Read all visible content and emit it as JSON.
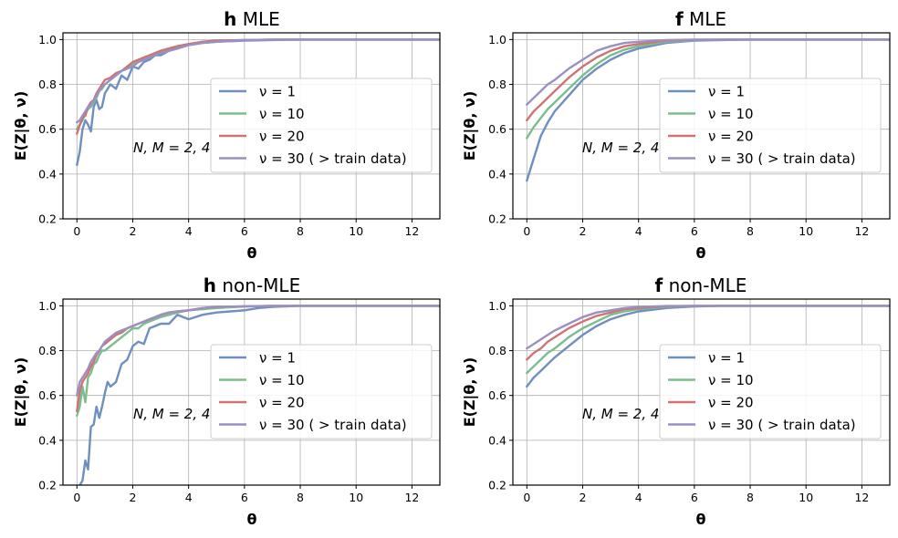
{
  "chart_data": [
    {
      "type": "line",
      "title_bold": "h",
      "title_rest": " MLE",
      "xlabel": "θ",
      "ylabel": "E(Z|θ, ν)",
      "xlim": [
        -0.5,
        13
      ],
      "ylim": [
        0.2,
        1.03
      ],
      "xticks": [
        0,
        2,
        4,
        6,
        8,
        10,
        12
      ],
      "yticks": [
        0.2,
        0.4,
        0.6,
        0.8,
        1.0
      ],
      "grid": true,
      "legend_position": "center-right",
      "annotation": "N, M = 2, 4",
      "series": [
        {
          "name": "ν = 1",
          "color": "#6e8fc0",
          "x": [
            0,
            0.1,
            0.2,
            0.3,
            0.4,
            0.5,
            0.6,
            0.7,
            0.8,
            0.9,
            1.0,
            1.2,
            1.4,
            1.6,
            1.8,
            2.0,
            2.2,
            2.4,
            2.6,
            2.8,
            3.0,
            3.3,
            3.6,
            4.0,
            4.5,
            5.0,
            6.0,
            7.0,
            8.0,
            10.0,
            13.0
          ],
          "y": [
            0.44,
            0.5,
            0.6,
            0.64,
            0.62,
            0.59,
            0.7,
            0.73,
            0.69,
            0.7,
            0.76,
            0.8,
            0.78,
            0.84,
            0.82,
            0.88,
            0.87,
            0.9,
            0.91,
            0.93,
            0.93,
            0.95,
            0.96,
            0.975,
            0.985,
            0.99,
            0.995,
            0.998,
            1.0,
            1.0,
            1.0
          ]
        },
        {
          "name": "ν = 10",
          "color": "#7bbd8c",
          "x": [
            0,
            0.1,
            0.2,
            0.3,
            0.4,
            0.5,
            0.6,
            0.7,
            0.8,
            0.9,
            1.0,
            1.2,
            1.4,
            1.6,
            1.8,
            2.0,
            2.2,
            2.4,
            2.6,
            2.8,
            3.0,
            3.3,
            3.6,
            4.0,
            4.5,
            5.0,
            6.0,
            7.0,
            8.0,
            10.0,
            13.0
          ],
          "y": [
            0.6,
            0.62,
            0.64,
            0.67,
            0.69,
            0.7,
            0.72,
            0.74,
            0.77,
            0.78,
            0.8,
            0.82,
            0.84,
            0.86,
            0.87,
            0.89,
            0.9,
            0.91,
            0.92,
            0.94,
            0.95,
            0.96,
            0.97,
            0.98,
            0.99,
            0.995,
            0.998,
            1.0,
            1.0,
            1.0,
            1.0
          ]
        },
        {
          "name": "ν = 20",
          "color": "#cd7474",
          "x": [
            0,
            0.1,
            0.2,
            0.3,
            0.4,
            0.5,
            0.6,
            0.7,
            0.8,
            0.9,
            1.0,
            1.2,
            1.4,
            1.6,
            1.8,
            2.0,
            2.2,
            2.4,
            2.6,
            2.8,
            3.0,
            3.3,
            3.6,
            4.0,
            4.5,
            5.0,
            6.0,
            7.0,
            8.0,
            10.0,
            13.0
          ],
          "y": [
            0.58,
            0.62,
            0.65,
            0.66,
            0.7,
            0.72,
            0.73,
            0.76,
            0.78,
            0.8,
            0.82,
            0.83,
            0.85,
            0.86,
            0.88,
            0.9,
            0.91,
            0.92,
            0.93,
            0.94,
            0.95,
            0.96,
            0.97,
            0.98,
            0.99,
            0.995,
            0.998,
            1.0,
            1.0,
            1.0,
            1.0
          ]
        },
        {
          "name": "ν = 30  ( >  train data)",
          "color": "#9b8fc3",
          "x": [
            0,
            0.1,
            0.2,
            0.3,
            0.4,
            0.5,
            0.6,
            0.7,
            0.8,
            0.9,
            1.0,
            1.2,
            1.4,
            1.6,
            1.8,
            2.0,
            2.2,
            2.4,
            2.6,
            2.8,
            3.0,
            3.3,
            3.6,
            4.0,
            4.5,
            5.0,
            6.0,
            7.0,
            8.0,
            10.0,
            13.0
          ],
          "y": [
            0.63,
            0.64,
            0.66,
            0.68,
            0.7,
            0.71,
            0.73,
            0.75,
            0.77,
            0.79,
            0.8,
            0.82,
            0.84,
            0.86,
            0.87,
            0.88,
            0.9,
            0.91,
            0.92,
            0.93,
            0.94,
            0.95,
            0.96,
            0.975,
            0.985,
            0.99,
            0.997,
            1.0,
            1.0,
            1.0,
            1.0
          ]
        }
      ]
    },
    {
      "type": "line",
      "title_bold": "f",
      "title_rest": " MLE",
      "xlabel": "θ",
      "ylabel": "E(Z|θ, ν)",
      "xlim": [
        -0.5,
        13
      ],
      "ylim": [
        0.2,
        1.03
      ],
      "xticks": [
        0,
        2,
        4,
        6,
        8,
        10,
        12
      ],
      "yticks": [
        0.2,
        0.4,
        0.6,
        0.8,
        1.0
      ],
      "grid": true,
      "legend_position": "center-right",
      "annotation": "N, M = 2, 4",
      "series": [
        {
          "name": "ν = 1",
          "color": "#6e8fc0",
          "x": [
            0,
            0.25,
            0.5,
            0.75,
            1.0,
            1.5,
            2.0,
            2.5,
            3.0,
            3.5,
            4.0,
            5.0,
            6.0,
            7.0,
            8.0,
            10.0,
            13.0
          ],
          "y": [
            0.37,
            0.47,
            0.57,
            0.63,
            0.68,
            0.75,
            0.82,
            0.87,
            0.91,
            0.94,
            0.96,
            0.985,
            0.995,
            0.998,
            1.0,
            1.0,
            1.0
          ]
        },
        {
          "name": "ν = 10",
          "color": "#7bbd8c",
          "x": [
            0,
            0.25,
            0.5,
            0.75,
            1.0,
            1.5,
            2.0,
            2.5,
            3.0,
            3.5,
            4.0,
            5.0,
            6.0,
            7.0,
            8.0,
            10.0,
            13.0
          ],
          "y": [
            0.56,
            0.61,
            0.65,
            0.69,
            0.72,
            0.78,
            0.84,
            0.89,
            0.93,
            0.955,
            0.97,
            0.99,
            0.997,
            1.0,
            1.0,
            1.0,
            1.0
          ]
        },
        {
          "name": "ν = 20",
          "color": "#cd7474",
          "x": [
            0,
            0.25,
            0.5,
            0.75,
            1.0,
            1.5,
            2.0,
            2.5,
            3.0,
            3.5,
            4.0,
            5.0,
            6.0,
            7.0,
            8.0,
            10.0,
            13.0
          ],
          "y": [
            0.64,
            0.68,
            0.71,
            0.74,
            0.77,
            0.83,
            0.88,
            0.92,
            0.95,
            0.97,
            0.98,
            0.995,
            0.999,
            1.0,
            1.0,
            1.0,
            1.0
          ]
        },
        {
          "name": "ν = 30  ( >  train data)",
          "color": "#9b8fc3",
          "x": [
            0,
            0.25,
            0.5,
            0.75,
            1.0,
            1.5,
            2.0,
            2.5,
            3.0,
            3.5,
            4.0,
            5.0,
            6.0,
            7.0,
            8.0,
            10.0,
            13.0
          ],
          "y": [
            0.71,
            0.74,
            0.77,
            0.8,
            0.82,
            0.87,
            0.91,
            0.95,
            0.97,
            0.985,
            0.99,
            0.998,
            1.0,
            1.0,
            1.0,
            1.0,
            1.0
          ]
        }
      ]
    },
    {
      "type": "line",
      "title_bold": "h",
      "title_rest": " non-MLE",
      "xlabel": "θ",
      "ylabel": "E(Z|θ, ν)",
      "xlim": [
        -0.5,
        13
      ],
      "ylim": [
        0.2,
        1.03
      ],
      "xticks": [
        0,
        2,
        4,
        6,
        8,
        10,
        12
      ],
      "yticks": [
        0.2,
        0.4,
        0.6,
        0.8,
        1.0
      ],
      "grid": true,
      "legend_position": "center-right",
      "annotation": "N, M = 2, 4",
      "series": [
        {
          "name": "ν = 1",
          "color": "#6e8fc0",
          "x": [
            0.1,
            0.2,
            0.3,
            0.4,
            0.5,
            0.6,
            0.7,
            0.8,
            0.9,
            1.0,
            1.1,
            1.2,
            1.4,
            1.6,
            1.8,
            2.0,
            2.2,
            2.4,
            2.6,
            2.8,
            3.0,
            3.3,
            3.6,
            4.0,
            4.5,
            5.0,
            5.5,
            6.0,
            6.5,
            7.0,
            8.0,
            10.0,
            13.0
          ],
          "y": [
            0.2,
            0.22,
            0.31,
            0.27,
            0.46,
            0.47,
            0.55,
            0.5,
            0.55,
            0.61,
            0.66,
            0.64,
            0.66,
            0.74,
            0.76,
            0.82,
            0.84,
            0.83,
            0.9,
            0.91,
            0.92,
            0.92,
            0.96,
            0.94,
            0.96,
            0.97,
            0.975,
            0.98,
            0.99,
            0.995,
            1.0,
            1.0,
            1.0
          ]
        },
        {
          "name": "ν = 10",
          "color": "#7bbd8c",
          "x": [
            0,
            0.1,
            0.2,
            0.3,
            0.4,
            0.5,
            0.6,
            0.7,
            0.8,
            0.9,
            1.0,
            1.2,
            1.4,
            1.6,
            1.8,
            2.0,
            2.2,
            2.4,
            2.6,
            2.8,
            3.0,
            3.3,
            3.6,
            4.0,
            4.5,
            5.0,
            6.0,
            7.0,
            8.0,
            10.0,
            13.0
          ],
          "y": [
            0.51,
            0.55,
            0.64,
            0.57,
            0.68,
            0.7,
            0.74,
            0.75,
            0.78,
            0.8,
            0.8,
            0.82,
            0.84,
            0.86,
            0.88,
            0.9,
            0.9,
            0.92,
            0.93,
            0.94,
            0.95,
            0.96,
            0.97,
            0.98,
            0.985,
            0.99,
            0.997,
            1.0,
            1.0,
            1.0,
            1.0
          ]
        },
        {
          "name": "ν = 20",
          "color": "#cd7474",
          "x": [
            0,
            0.1,
            0.2,
            0.3,
            0.4,
            0.5,
            0.6,
            0.7,
            0.8,
            0.9,
            1.0,
            1.2,
            1.4,
            1.6,
            1.8,
            2.0,
            2.2,
            2.4,
            2.6,
            2.8,
            3.0,
            3.3,
            3.6,
            4.0,
            4.5,
            5.0,
            6.0,
            7.0,
            8.0,
            10.0,
            13.0
          ],
          "y": [
            0.53,
            0.62,
            0.66,
            0.68,
            0.7,
            0.73,
            0.75,
            0.78,
            0.8,
            0.82,
            0.83,
            0.85,
            0.87,
            0.88,
            0.9,
            0.91,
            0.92,
            0.93,
            0.94,
            0.95,
            0.96,
            0.97,
            0.975,
            0.98,
            0.99,
            0.995,
            0.998,
            1.0,
            1.0,
            1.0,
            1.0
          ]
        },
        {
          "name": "ν = 30  ( >  train data)",
          "color": "#9b8fc3",
          "x": [
            0,
            0.1,
            0.2,
            0.3,
            0.4,
            0.5,
            0.6,
            0.7,
            0.8,
            0.9,
            1.0,
            1.2,
            1.4,
            1.6,
            1.8,
            2.0,
            2.2,
            2.4,
            2.6,
            2.8,
            3.0,
            3.3,
            3.6,
            4.0,
            4.5,
            5.0,
            6.0,
            7.0,
            8.0,
            10.0,
            13.0
          ],
          "y": [
            0.6,
            0.66,
            0.68,
            0.7,
            0.72,
            0.75,
            0.77,
            0.79,
            0.8,
            0.82,
            0.84,
            0.86,
            0.88,
            0.89,
            0.9,
            0.91,
            0.92,
            0.93,
            0.94,
            0.95,
            0.96,
            0.97,
            0.975,
            0.98,
            0.99,
            0.995,
            0.998,
            1.0,
            1.0,
            1.0,
            1.0
          ]
        }
      ]
    },
    {
      "type": "line",
      "title_bold": "f",
      "title_rest": " non-MLE",
      "xlabel": "θ",
      "ylabel": "E(Z|θ, ν)",
      "xlim": [
        -0.5,
        13
      ],
      "ylim": [
        0.2,
        1.03
      ],
      "xticks": [
        0,
        2,
        4,
        6,
        8,
        10,
        12
      ],
      "yticks": [
        0.2,
        0.4,
        0.6,
        0.8,
        1.0
      ],
      "grid": true,
      "legend_position": "center-right",
      "annotation": "N, M = 2, 4",
      "series": [
        {
          "name": "ν = 1",
          "color": "#6e8fc0",
          "x": [
            0,
            0.25,
            0.5,
            0.75,
            1.0,
            1.5,
            2.0,
            2.5,
            3.0,
            3.5,
            4.0,
            5.0,
            6.0,
            7.0,
            8.0,
            10.0,
            13.0
          ],
          "y": [
            0.64,
            0.68,
            0.71,
            0.74,
            0.77,
            0.82,
            0.87,
            0.91,
            0.94,
            0.96,
            0.975,
            0.99,
            0.997,
            1.0,
            1.0,
            1.0,
            1.0
          ]
        },
        {
          "name": "ν = 10",
          "color": "#7bbd8c",
          "x": [
            0,
            0.25,
            0.5,
            0.75,
            1.0,
            1.5,
            2.0,
            2.5,
            3.0,
            3.5,
            4.0,
            5.0,
            6.0,
            7.0,
            8.0,
            10.0,
            13.0
          ],
          "y": [
            0.7,
            0.73,
            0.76,
            0.79,
            0.81,
            0.86,
            0.9,
            0.93,
            0.96,
            0.975,
            0.985,
            0.995,
            0.999,
            1.0,
            1.0,
            1.0,
            1.0
          ]
        },
        {
          "name": "ν = 20",
          "color": "#cd7474",
          "x": [
            0,
            0.25,
            0.5,
            0.75,
            1.0,
            1.5,
            2.0,
            2.5,
            3.0,
            3.5,
            4.0,
            5.0,
            6.0,
            7.0,
            8.0,
            10.0,
            13.0
          ],
          "y": [
            0.76,
            0.79,
            0.81,
            0.84,
            0.86,
            0.9,
            0.93,
            0.955,
            0.97,
            0.985,
            0.99,
            0.998,
            1.0,
            1.0,
            1.0,
            1.0,
            1.0
          ]
        },
        {
          "name": "ν = 30  ( >  train data)",
          "color": "#9b8fc3",
          "x": [
            0,
            0.25,
            0.5,
            0.75,
            1.0,
            1.5,
            2.0,
            2.5,
            3.0,
            3.5,
            4.0,
            5.0,
            6.0,
            7.0,
            8.0,
            10.0,
            13.0
          ],
          "y": [
            0.81,
            0.83,
            0.85,
            0.87,
            0.89,
            0.92,
            0.95,
            0.97,
            0.98,
            0.99,
            0.995,
            0.999,
            1.0,
            1.0,
            1.0,
            1.0,
            1.0
          ]
        }
      ]
    }
  ]
}
